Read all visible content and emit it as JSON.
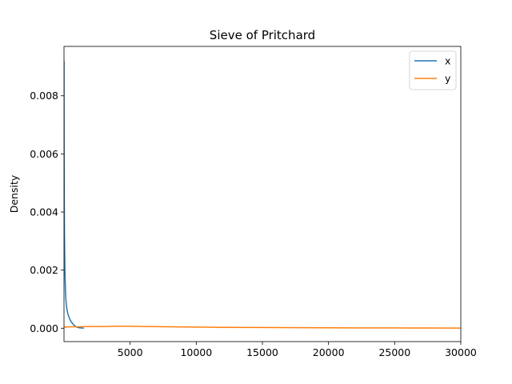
{
  "chart_data": {
    "type": "line",
    "title": "Sieve of Pritchard",
    "xlabel": "",
    "ylabel": "Density",
    "xlim": [
      0,
      30000
    ],
    "ylim": [
      -0.00046,
      0.0097
    ],
    "xticks": [
      5000,
      10000,
      15000,
      20000,
      25000,
      30000
    ],
    "xtick_labels": [
      "5000",
      "10000",
      "15000",
      "20000",
      "25000",
      "30000"
    ],
    "yticks": [
      0.0,
      0.002,
      0.004,
      0.006,
      0.008
    ],
    "ytick_labels": [
      "0.000",
      "0.002",
      "0.004",
      "0.006",
      "0.008"
    ],
    "grid": false,
    "legend_position": "top-right",
    "series": [
      {
        "name": "x",
        "color": "#1f77b4",
        "x": [
          1,
          5,
          10,
          20,
          35,
          50,
          70,
          90,
          120,
          150,
          200,
          250,
          300,
          380,
          450,
          550,
          650,
          750,
          850,
          950,
          1100,
          1300,
          1500
        ],
        "y": [
          0.0092,
          0.0075,
          0.006,
          0.0045,
          0.0033,
          0.0026,
          0.002,
          0.0016,
          0.0012,
          0.00095,
          0.00072,
          0.00058,
          0.00048,
          0.00038,
          0.0003,
          0.00022,
          0.00016,
          0.00011,
          7e-05,
          4e-05,
          2e-05,
          1e-05,
          0.0
        ]
      },
      {
        "name": "y",
        "color": "#ff7f0e",
        "x": [
          1,
          500,
          1000,
          2000,
          3000,
          4000,
          5000,
          6000,
          8000,
          10000,
          12000,
          15000,
          18000,
          20000,
          22000,
          25000,
          28000,
          30000
        ],
        "y": [
          4e-05,
          5e-05,
          5e-05,
          6e-05,
          6e-05,
          7e-05,
          7e-05,
          6e-05,
          5e-05,
          4e-05,
          3e-05,
          2.5e-05,
          2e-05,
          1.5e-05,
          1.2e-05,
          1e-05,
          7e-06,
          5e-06
        ]
      }
    ]
  }
}
